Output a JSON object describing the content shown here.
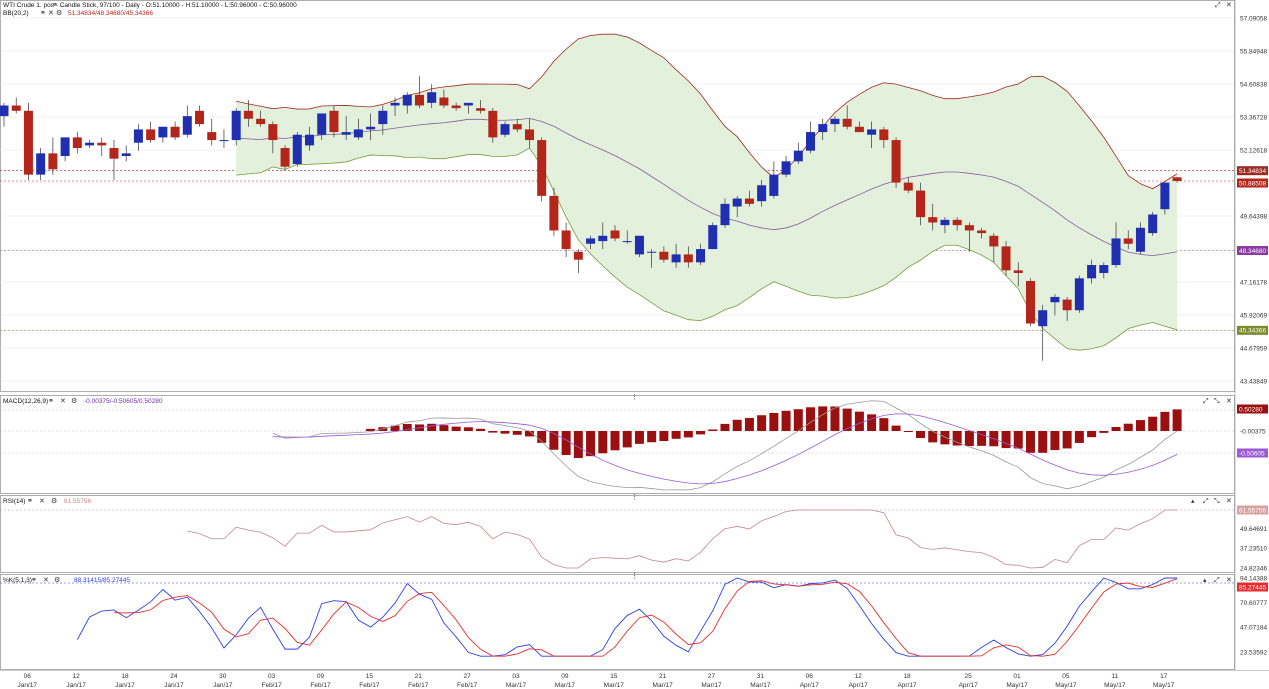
{
  "header": {
    "title": "WTI Crude 1. pos - Candle Stick, 97/100 - Daily - O:51.10000 - H:51.10000 - L:50.96000 - C:50.96000",
    "bb_label": "BB(20,2)",
    "bb_values": "51.34834/48.34680/45.34366"
  },
  "panels": {
    "macd": {
      "label": "MACD(12,26,9)",
      "values": "-0.00375/-0.50605/0.50280"
    },
    "rsi": {
      "label": "RSI(14)",
      "values": "61.55756"
    },
    "stoch": {
      "label": "%K(5,1,3)",
      "values": "88.31415/85.27445"
    }
  },
  "colors": {
    "up": "#1f2fb0",
    "down": "#b5261a",
    "band_fill": "#e2f0dc",
    "band_upper": "#9c2a20",
    "band_lower": "#7a9a3a",
    "mid": "#8a5aa0",
    "macd_hist": "#9a1010",
    "macd_line": "#9a9a9a",
    "signal_line": "#9b59d6",
    "rsi_line": "#c08a8a",
    "stoch_k": "#2d3fe6",
    "stoch_d": "#e62d2d"
  },
  "chart_data": {
    "type": "candlestick",
    "price_axis": [
      "57.09058",
      "55.84948",
      "54.60838",
      "53.36728",
      "52.12618",
      "51.34834",
      "50.88508",
      "49.64398",
      "48.34680",
      "47.16178",
      "45.92069",
      "45.34366",
      "44.67959",
      "43.43849"
    ],
    "rsi_axis": [
      "61.55756",
      "49.64691",
      "37.23510",
      "24.82346"
    ],
    "stoch_axis": [
      "94.14388",
      "85.27445",
      "70.60777",
      "47.07184",
      "23.53592"
    ],
    "macd_axis": [
      "0.50280",
      "-0.00375",
      "-0.50605"
    ],
    "price_tags": {
      "last_close": "50.96000",
      "bb_upper": "51.34834",
      "bb_mid": "48.34680",
      "bb_lower": "45.34366"
    },
    "x_day_labels": [
      "06",
      "12",
      "18",
      "24",
      "30",
      "03",
      "09",
      "15",
      "21",
      "27",
      "03",
      "09",
      "15",
      "21",
      "27",
      "31",
      "06",
      "12",
      "18",
      "25",
      "01",
      "05",
      "11",
      "17"
    ],
    "x_month_labels": [
      "Jan/17",
      "Jan/17",
      "Jan/17",
      "Jan/17",
      "Jan/17",
      "Feb/17",
      "Feb/17",
      "Feb/17",
      "Feb/17",
      "Feb/17",
      "Mar/17",
      "Mar/17",
      "Mar/17",
      "Mar/17",
      "Mar/17",
      "Mar/17",
      "Apr/17",
      "Apr/17",
      "Apr/17",
      "Apr/17",
      "May/17",
      "May/17",
      "May/17",
      "May/17"
    ],
    "candles": [
      {
        "o": 53.4,
        "h": 53.9,
        "l": 53.0,
        "c": 53.8
      },
      {
        "o": 53.8,
        "h": 54.1,
        "l": 53.5,
        "c": 53.6
      },
      {
        "o": 53.6,
        "h": 53.9,
        "l": 51.0,
        "c": 51.2
      },
      {
        "o": 51.2,
        "h": 52.2,
        "l": 51.0,
        "c": 52.0
      },
      {
        "o": 52.0,
        "h": 52.6,
        "l": 51.2,
        "c": 51.4
      },
      {
        "o": 51.9,
        "h": 52.6,
        "l": 51.7,
        "c": 52.6
      },
      {
        "o": 52.6,
        "h": 52.8,
        "l": 52.0,
        "c": 52.2
      },
      {
        "o": 52.3,
        "h": 52.5,
        "l": 52.2,
        "c": 52.4
      },
      {
        "o": 52.4,
        "h": 52.6,
        "l": 51.9,
        "c": 52.3
      },
      {
        "o": 52.2,
        "h": 52.5,
        "l": 51.0,
        "c": 51.8
      },
      {
        "o": 51.9,
        "h": 52.3,
        "l": 51.7,
        "c": 52.0
      },
      {
        "o": 52.4,
        "h": 53.1,
        "l": 52.1,
        "c": 52.9
      },
      {
        "o": 52.9,
        "h": 53.2,
        "l": 52.4,
        "c": 52.5
      },
      {
        "o": 52.6,
        "h": 53.0,
        "l": 52.4,
        "c": 53.0
      },
      {
        "o": 53.0,
        "h": 53.2,
        "l": 52.5,
        "c": 52.6
      },
      {
        "o": 52.7,
        "h": 53.8,
        "l": 52.6,
        "c": 53.4
      },
      {
        "o": 53.6,
        "h": 53.8,
        "l": 53.0,
        "c": 53.1
      },
      {
        "o": 52.8,
        "h": 53.3,
        "l": 52.3,
        "c": 52.5
      },
      {
        "o": 52.5,
        "h": 52.9,
        "l": 52.2,
        "c": 52.5
      },
      {
        "o": 52.5,
        "h": 53.7,
        "l": 52.3,
        "c": 53.6
      },
      {
        "o": 53.6,
        "h": 54.0,
        "l": 53.0,
        "c": 53.3
      },
      {
        "o": 53.3,
        "h": 53.6,
        "l": 53.0,
        "c": 53.1
      },
      {
        "o": 53.1,
        "h": 53.2,
        "l": 52.0,
        "c": 52.5
      },
      {
        "o": 52.2,
        "h": 52.3,
        "l": 51.4,
        "c": 51.5
      },
      {
        "o": 51.6,
        "h": 52.8,
        "l": 51.5,
        "c": 52.7
      },
      {
        "o": 52.3,
        "h": 53.0,
        "l": 52.1,
        "c": 52.7
      },
      {
        "o": 52.7,
        "h": 53.5,
        "l": 52.5,
        "c": 53.5
      },
      {
        "o": 53.6,
        "h": 53.8,
        "l": 52.6,
        "c": 52.8
      },
      {
        "o": 52.7,
        "h": 53.4,
        "l": 52.5,
        "c": 52.8
      },
      {
        "o": 52.6,
        "h": 53.3,
        "l": 52.5,
        "c": 52.9
      },
      {
        "o": 52.9,
        "h": 53.5,
        "l": 52.5,
        "c": 53.0
      },
      {
        "o": 53.1,
        "h": 53.8,
        "l": 52.7,
        "c": 53.6
      },
      {
        "o": 53.8,
        "h": 54.1,
        "l": 53.4,
        "c": 53.9
      },
      {
        "o": 53.8,
        "h": 54.3,
        "l": 53.5,
        "c": 54.2
      },
      {
        "o": 54.2,
        "h": 54.9,
        "l": 53.7,
        "c": 53.8
      },
      {
        "o": 53.9,
        "h": 54.6,
        "l": 53.7,
        "c": 54.3
      },
      {
        "o": 54.1,
        "h": 54.4,
        "l": 53.7,
        "c": 53.8
      },
      {
        "o": 53.8,
        "h": 53.9,
        "l": 53.6,
        "c": 53.7
      },
      {
        "o": 53.8,
        "h": 53.9,
        "l": 53.5,
        "c": 53.9
      },
      {
        "o": 53.7,
        "h": 54.0,
        "l": 53.5,
        "c": 53.6
      },
      {
        "o": 53.6,
        "h": 53.7,
        "l": 52.4,
        "c": 52.6
      },
      {
        "o": 52.7,
        "h": 53.2,
        "l": 52.6,
        "c": 53.1
      },
      {
        "o": 53.1,
        "h": 53.3,
        "l": 52.8,
        "c": 52.9
      },
      {
        "o": 52.9,
        "h": 53.3,
        "l": 52.2,
        "c": 52.5
      },
      {
        "o": 52.5,
        "h": 52.6,
        "l": 50.2,
        "c": 50.4
      },
      {
        "o": 50.4,
        "h": 50.7,
        "l": 48.9,
        "c": 49.1
      },
      {
        "o": 49.1,
        "h": 49.4,
        "l": 48.1,
        "c": 48.4
      },
      {
        "o": 48.3,
        "h": 48.4,
        "l": 47.5,
        "c": 48.0
      },
      {
        "o": 48.6,
        "h": 48.9,
        "l": 48.4,
        "c": 48.8
      },
      {
        "o": 48.7,
        "h": 49.4,
        "l": 48.4,
        "c": 48.9
      },
      {
        "o": 49.1,
        "h": 49.3,
        "l": 48.7,
        "c": 48.8
      },
      {
        "o": 48.7,
        "h": 49.1,
        "l": 48.6,
        "c": 48.7
      },
      {
        "o": 48.2,
        "h": 48.9,
        "l": 48.1,
        "c": 48.9
      },
      {
        "o": 48.3,
        "h": 48.4,
        "l": 47.7,
        "c": 48.3
      },
      {
        "o": 48.3,
        "h": 48.5,
        "l": 47.9,
        "c": 48.0
      },
      {
        "o": 47.9,
        "h": 48.6,
        "l": 47.7,
        "c": 48.2
      },
      {
        "o": 48.2,
        "h": 48.5,
        "l": 47.7,
        "c": 47.9
      },
      {
        "o": 47.9,
        "h": 48.6,
        "l": 47.8,
        "c": 48.4
      },
      {
        "o": 48.4,
        "h": 49.4,
        "l": 48.4,
        "c": 49.3
      },
      {
        "o": 49.3,
        "h": 50.3,
        "l": 49.2,
        "c": 50.1
      },
      {
        "o": 50.0,
        "h": 50.4,
        "l": 49.6,
        "c": 50.3
      },
      {
        "o": 50.3,
        "h": 50.6,
        "l": 50.0,
        "c": 50.1
      },
      {
        "o": 50.2,
        "h": 51.0,
        "l": 50.0,
        "c": 50.8
      },
      {
        "o": 50.4,
        "h": 51.7,
        "l": 50.3,
        "c": 51.2
      },
      {
        "o": 51.2,
        "h": 51.9,
        "l": 51.1,
        "c": 51.7
      },
      {
        "o": 51.7,
        "h": 52.4,
        "l": 51.6,
        "c": 52.1
      },
      {
        "o": 52.1,
        "h": 53.2,
        "l": 52.0,
        "c": 52.8
      },
      {
        "o": 52.8,
        "h": 53.3,
        "l": 52.5,
        "c": 53.1
      },
      {
        "o": 53.1,
        "h": 53.4,
        "l": 52.8,
        "c": 53.3
      },
      {
        "o": 53.3,
        "h": 53.8,
        "l": 52.9,
        "c": 53.0
      },
      {
        "o": 53.0,
        "h": 53.2,
        "l": 52.8,
        "c": 52.8
      },
      {
        "o": 52.7,
        "h": 53.2,
        "l": 52.2,
        "c": 52.9
      },
      {
        "o": 52.9,
        "h": 53.0,
        "l": 52.2,
        "c": 52.5
      },
      {
        "o": 52.5,
        "h": 52.6,
        "l": 50.7,
        "c": 50.9
      },
      {
        "o": 50.9,
        "h": 51.1,
        "l": 50.5,
        "c": 50.6
      },
      {
        "o": 50.6,
        "h": 50.9,
        "l": 49.3,
        "c": 49.6
      },
      {
        "o": 49.6,
        "h": 50.1,
        "l": 49.1,
        "c": 49.4
      },
      {
        "o": 49.3,
        "h": 49.6,
        "l": 49.0,
        "c": 49.5
      },
      {
        "o": 49.5,
        "h": 49.6,
        "l": 49.1,
        "c": 49.3
      },
      {
        "o": 49.3,
        "h": 49.4,
        "l": 48.3,
        "c": 49.1
      },
      {
        "o": 49.1,
        "h": 49.2,
        "l": 48.8,
        "c": 49.0
      },
      {
        "o": 48.9,
        "h": 49.0,
        "l": 47.9,
        "c": 48.5
      },
      {
        "o": 48.5,
        "h": 48.7,
        "l": 47.4,
        "c": 47.6
      },
      {
        "o": 47.6,
        "h": 47.9,
        "l": 47.0,
        "c": 47.5
      },
      {
        "o": 47.2,
        "h": 47.3,
        "l": 45.5,
        "c": 45.6
      },
      {
        "o": 45.5,
        "h": 46.3,
        "l": 44.2,
        "c": 46.1
      },
      {
        "o": 46.4,
        "h": 46.7,
        "l": 45.9,
        "c": 46.6
      },
      {
        "o": 46.5,
        "h": 46.6,
        "l": 45.7,
        "c": 46.1
      },
      {
        "o": 46.1,
        "h": 47.4,
        "l": 46.0,
        "c": 47.3
      },
      {
        "o": 47.3,
        "h": 48.0,
        "l": 47.1,
        "c": 47.8
      },
      {
        "o": 47.5,
        "h": 47.9,
        "l": 47.3,
        "c": 47.8
      },
      {
        "o": 47.8,
        "h": 49.4,
        "l": 47.7,
        "c": 48.8
      },
      {
        "o": 48.8,
        "h": 49.1,
        "l": 48.4,
        "c": 48.6
      },
      {
        "o": 48.3,
        "h": 49.4,
        "l": 48.2,
        "c": 49.2
      },
      {
        "o": 49.0,
        "h": 49.8,
        "l": 48.9,
        "c": 49.7
      },
      {
        "o": 49.9,
        "h": 50.9,
        "l": 49.7,
        "c": 50.9
      },
      {
        "o": 51.1,
        "h": 51.1,
        "l": 50.9,
        "c": 50.96
      }
    ]
  }
}
